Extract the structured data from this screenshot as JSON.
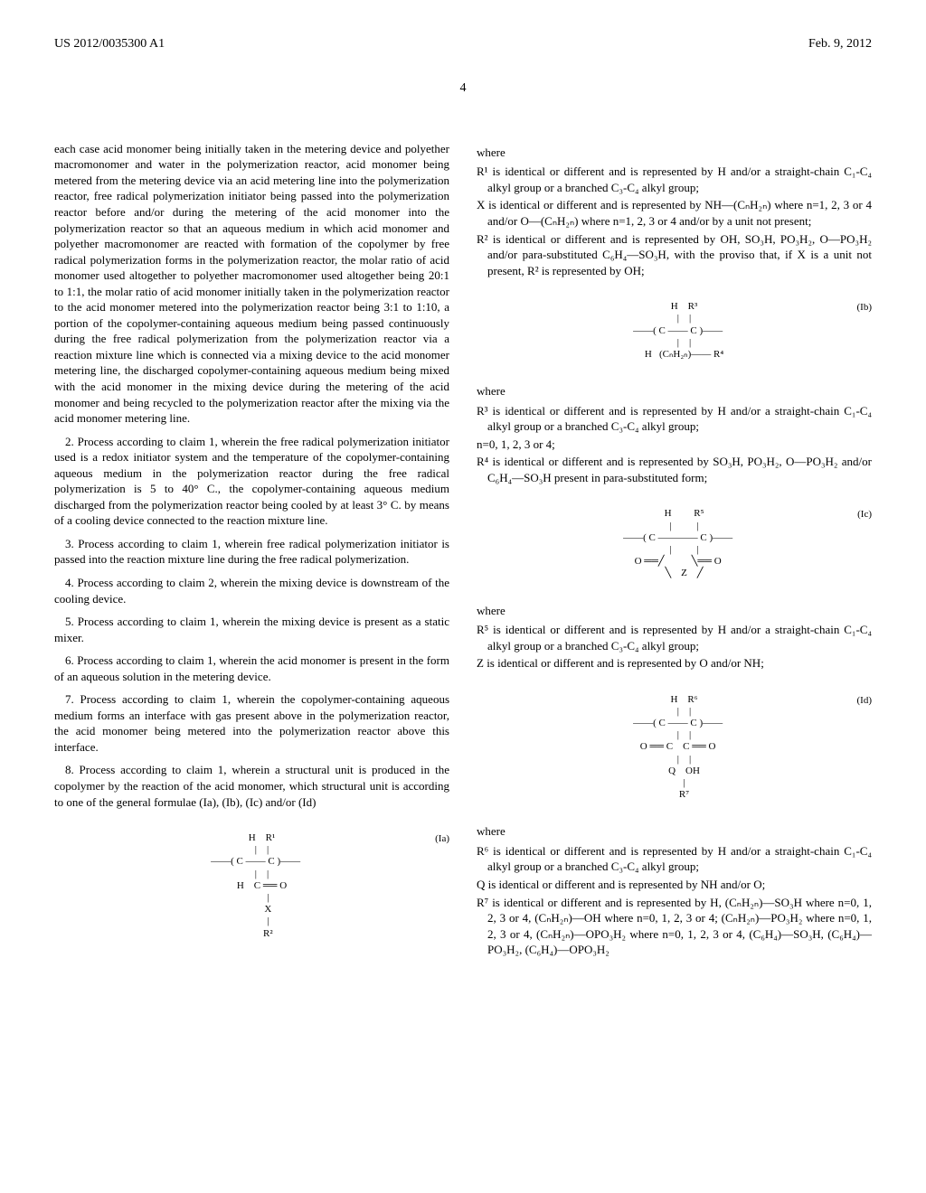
{
  "header": {
    "patent_number": "US 2012/0035300 A1",
    "date": "Feb. 9, 2012"
  },
  "page_number": "4",
  "left_column": {
    "claim1_continuation": "each case acid monomer being initially taken in the metering device and polyether macromonomer and water in the polymerization reactor, acid monomer being metered from the metering device via an acid metering line into the polymerization reactor, free radical polymerization initiator being passed into the polymerization reactor before and/or during the metering of the acid monomer into the polymerization reactor so that an aqueous medium in which acid monomer and polyether macromonomer are reacted with formation of the copolymer by free radical polymerization forms in the polymerization reactor, the molar ratio of acid monomer used altogether to polyether macromonomer used altogether being 20:1 to 1:1, the molar ratio of acid monomer initially taken in the polymerization reactor to the acid monomer metered into the polymerization reactor being 3:1 to 1:10, a portion of the copolymer-containing aqueous medium being passed continuously during the free radical polymerization from the polymerization reactor via a reaction mixture line which is connected via a mixing device to the acid monomer metering line, the discharged copolymer-containing aqueous medium being mixed with the acid monomer in the mixing device during the metering of the acid monomer and being recycled to the polymerization reactor after the mixing via the acid monomer metering line.",
    "claim2": "2. Process according to claim 1, wherein the free radical polymerization initiator used is a redox initiator system and the temperature of the copolymer-containing aqueous medium in the polymerization reactor during the free radical polymerization is 5 to 40° C., the copolymer-containing aqueous medium discharged from the polymerization reactor being cooled by at least 3° C. by means of a cooling device connected to the reaction mixture line.",
    "claim3": "3. Process according to claim 1, wherein free radical polymerization initiator is passed into the reaction mixture line during the free radical polymerization.",
    "claim4": "4. Process according to claim 2, wherein the mixing device is downstream of the cooling device.",
    "claim5": "5. Process according to claim 1, wherein the mixing device is present as a static mixer.",
    "claim6": "6. Process according to claim 1, wherein the acid monomer is present in the form of an aqueous solution in the metering device.",
    "claim7": "7. Process according to claim 1, wherein the copolymer-containing aqueous medium forms an interface with gas present above in the polymerization reactor, the acid monomer being metered into the polymerization reactor above this interface.",
    "claim8": "8. Process according to claim 1, wherein a structural unit is produced in the copolymer by the reaction of the acid monomer, which structural unit is according to one of the general formulae (Ia), (Ib), (Ic) and/or (Id)",
    "formula_Ia_label": "(Ia)"
  },
  "right_column": {
    "where1": "where",
    "def_R1": "R¹ is identical or different and is represented by H and/or a straight-chain C₁-C₄ alkyl group or a branched C₃-C₄ alkyl group;",
    "def_X": "X is identical or different and is represented by NH—(CₙH₂ₙ) where n=1, 2, 3 or 4 and/or O—(CₙH₂ₙ) where n=1, 2, 3 or 4 and/or by a unit not present;",
    "def_R2": "R² is identical or different and is represented by OH, SO₃H, PO₃H₂, O—PO₃H₂ and/or para-substituted C₆H₄—SO₃H, with the proviso that, if X is a unit not present, R² is represented by OH;",
    "formula_Ib_label": "(Ib)",
    "where2": "where",
    "def_R3": "R³ is identical or different and is represented by H and/or a straight-chain C₁-C₄ alkyl group or a branched C₃-C₄ alkyl group;",
    "def_n": "n=0, 1, 2, 3 or 4;",
    "def_R4": "R⁴ is identical or different and is represented by SO₃H, PO₃H₂, O—PO₃H₂ and/or C₆H₄—SO₃H present in para-substituted form;",
    "formula_Ic_label": "(Ic)",
    "where3": "where",
    "def_R5": "R⁵ is identical or different and is represented by H and/or a straight-chain C₁-C₄ alkyl group or a branched C₃-C₄ alkyl group;",
    "def_Z": "Z is identical or different and is represented by O and/or NH;",
    "formula_Id_label": "(Id)",
    "where4": "where",
    "def_R6": "R⁶ is identical or different and is represented by H and/or a straight-chain C₁-C₄ alkyl group or a branched C₃-C₄ alkyl group;",
    "def_Q": "Q is identical or different and is represented by NH and/or O;",
    "def_R7": "R⁷ is identical or different and is represented by H, (CₙH₂ₙ)—SO₃H where n=0, 1, 2, 3 or 4, (CₙH₂ₙ)—OH where n=0, 1, 2, 3 or 4; (CₙH₂ₙ)—PO₃H₂ where n=0, 1, 2, 3 or 4, (CₙH₂ₙ)—OPO₃H₂ where n=0, 1, 2, 3 or 4, (C₆H₄)—SO₃H, (C₆H₄)—PO₃H₂, (C₆H₄)—OPO₃H₂"
  },
  "formulae": {
    "Ia": "        H    R¹\n        |    |\n   ——( C —— C )——\n        |    |\n        H    C ══ O\n             |\n             X\n             |\n             R²",
    "Ib": "        H    R³\n        |    |\n   ——( C —— C )——\n        |    |\n        H   (CₙH₂ₙ)—— R⁴",
    "Ic": "        H         R⁵\n        |          |\n   ——( C ———— C )——\n        |          |\n   O ══╱           ╲══ O\n        ╲    Z    ╱",
    "Id": "        H    R⁶\n        |    |\n   ——( C —— C )——\n        |    |\n   O ══ C    C ══ O\n        |    |\n        Q    OH\n        |\n        R⁷"
  }
}
